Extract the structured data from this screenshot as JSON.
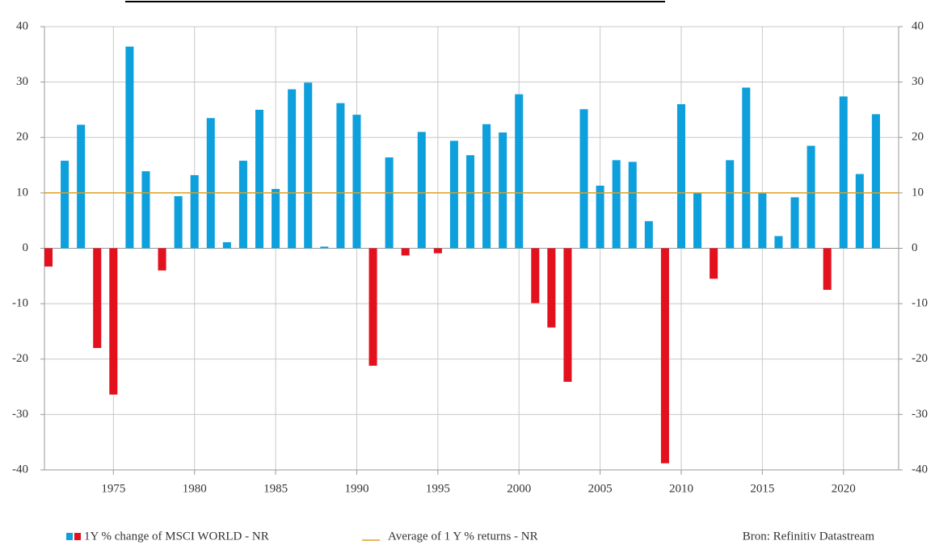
{
  "chart_data": {
    "type": "bar",
    "x": [
      1971,
      1972,
      1973,
      1974,
      1975,
      1976,
      1977,
      1978,
      1979,
      1980,
      1981,
      1982,
      1983,
      1984,
      1985,
      1986,
      1987,
      1988,
      1989,
      1990,
      1991,
      1992,
      1993,
      1994,
      1995,
      1996,
      1997,
      1998,
      1999,
      2000,
      2001,
      2002,
      2003,
      2004,
      2005,
      2006,
      2007,
      2008,
      2009,
      2010,
      2011,
      2012,
      2013,
      2014,
      2015,
      2016,
      2017,
      2018,
      2019,
      2020,
      2021,
      2022
    ],
    "series": [
      {
        "name": "1Y % change of MSCI WORLD - NR",
        "color": "#0ea0dc",
        "negative_color": "#e3101e",
        "values": [
          -3.3,
          15.8,
          22.3,
          -18,
          -26.4,
          36.4,
          13.9,
          -4,
          9.4,
          13.2,
          23.5,
          1.1,
          15.8,
          25,
          10.7,
          28.7,
          29.9,
          0.3,
          26.2,
          24.1,
          -21.2,
          16.4,
          -1.3,
          21,
          -0.9,
          19.4,
          16.8,
          22.4,
          20.9,
          27.8,
          -9.9,
          -14.3,
          -24.1,
          25.1,
          11.3,
          15.9,
          15.6,
          4.9,
          -38.8,
          26,
          10,
          -5.5,
          15.9,
          29,
          9.9,
          2.2,
          9.2,
          18.5,
          -7.5,
          27.4,
          13.4,
          24.2
        ]
      }
    ],
    "reference_line": {
      "name": "Average of 1 Y % returns - NR",
      "value": 10,
      "color": "#e0a020"
    },
    "source": "Bron: Refinitiv Datastream",
    "xlim": [
      1970.75,
      2023.4
    ],
    "xticks": [
      1975,
      1980,
      1985,
      1990,
      1995,
      2000,
      2005,
      2010,
      2015,
      2020
    ],
    "ylim": [
      -40,
      40
    ],
    "yticks": [
      -40,
      -30,
      -20,
      -10,
      0,
      10,
      20,
      30,
      40
    ],
    "grid": true
  }
}
